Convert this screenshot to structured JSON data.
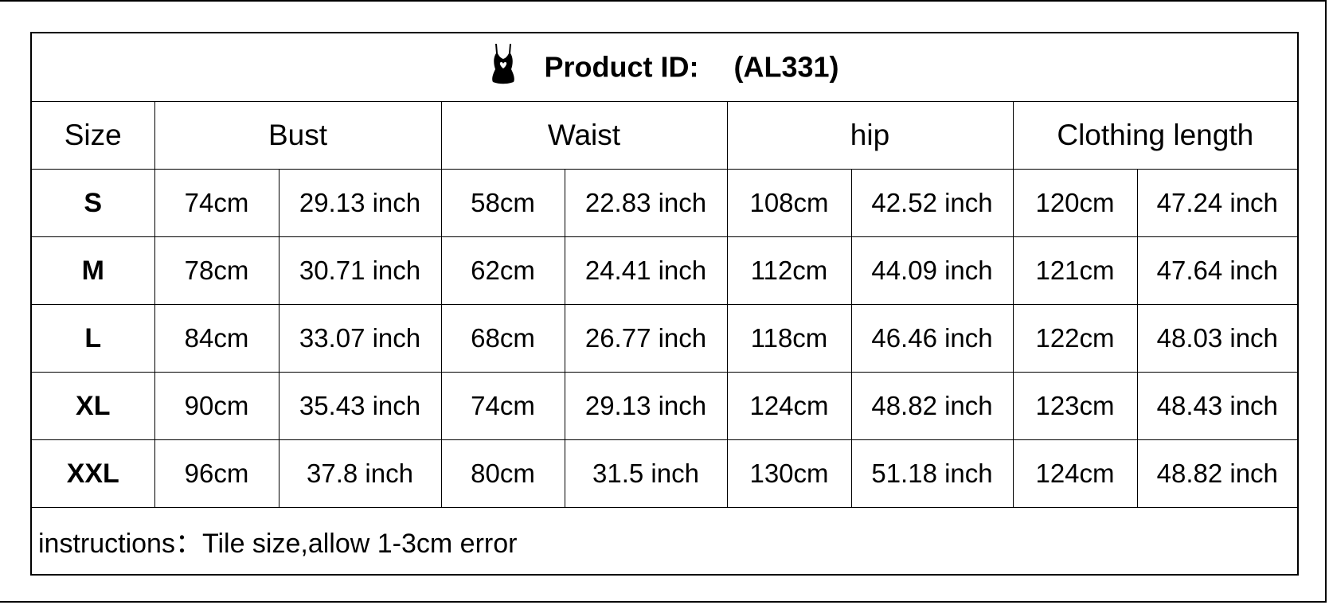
{
  "title": {
    "label": "Product ID:",
    "id": "(AL331)",
    "icon": "tank-top-heart-icon"
  },
  "headers": [
    "Size",
    "Bust",
    "Waist",
    "hip",
    "Clothing length"
  ],
  "rows": [
    {
      "size": "S",
      "values": [
        "74cm",
        "29.13 inch",
        "58cm",
        "22.83 inch",
        "108cm",
        "42.52 inch",
        "120cm",
        "47.24 inch"
      ]
    },
    {
      "size": "M",
      "values": [
        "78cm",
        "30.71 inch",
        "62cm",
        "24.41 inch",
        "112cm",
        "44.09 inch",
        "121cm",
        "47.64 inch"
      ]
    },
    {
      "size": "L",
      "values": [
        "84cm",
        "33.07 inch",
        "68cm",
        "26.77 inch",
        "118cm",
        "46.46 inch",
        "122cm",
        "48.03 inch"
      ]
    },
    {
      "size": "XL",
      "values": [
        "90cm",
        "35.43 inch",
        "74cm",
        "29.13 inch",
        "124cm",
        "48.82 inch",
        "123cm",
        "48.43 inch"
      ]
    },
    {
      "size": "XXL",
      "values": [
        "96cm",
        "37.8 inch",
        "80cm",
        "31.5 inch",
        "130cm",
        "51.18 inch",
        "124cm",
        "48.82 inch"
      ]
    }
  ],
  "note": "instructions：Tile size,allow 1-3cm error"
}
